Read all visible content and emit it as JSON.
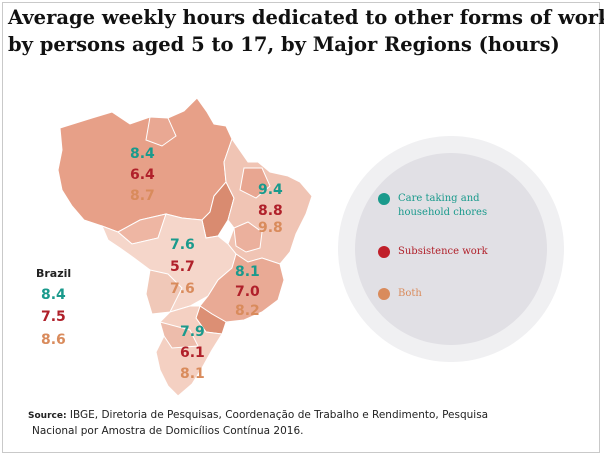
{
  "title": {
    "line1": "Average weekly hours dedicated to other forms of work",
    "line2": "by persons aged 5 to 17, by Major Regions (hours)"
  },
  "colors": {
    "care": "#1a9a8c",
    "subsistence": "#b0202a",
    "both": "#d98b5c"
  },
  "legend": [
    {
      "label_line1": "Care taking and",
      "label_line2": "household chores",
      "color": "#1a9a8c"
    },
    {
      "label_line1": "Subsistence work",
      "label_line2": "",
      "color": "#c01f2a"
    },
    {
      "label_line1": "Both",
      "label_line2": "",
      "color": "#d98b5c"
    }
  ],
  "brazil": {
    "label": "Brazil",
    "care": "8.4",
    "subsistence": "7.5",
    "both": "8.6"
  },
  "regions": [
    {
      "id": "north",
      "care": "8.4",
      "subsistence": "6.4",
      "both": "8.7"
    },
    {
      "id": "northeast",
      "care": "9.4",
      "subsistence": "8.8",
      "both": "9.8"
    },
    {
      "id": "center-west",
      "care": "7.6",
      "subsistence": "5.7",
      "both": "7.6"
    },
    {
      "id": "southeast",
      "care": "8.1",
      "subsistence": "7.0",
      "both": "8.2"
    },
    {
      "id": "south",
      "care": "7.9",
      "subsistence": "6.1",
      "both": "8.1"
    }
  ],
  "source": {
    "label": "Source:",
    "text": " IBGE, Diretoria de Pesquisas, Coordenação de Trabalho e Rendimento, Pesquisa",
    "text2": "Nacional por Amostra de Domicílios Contínua 2016."
  }
}
